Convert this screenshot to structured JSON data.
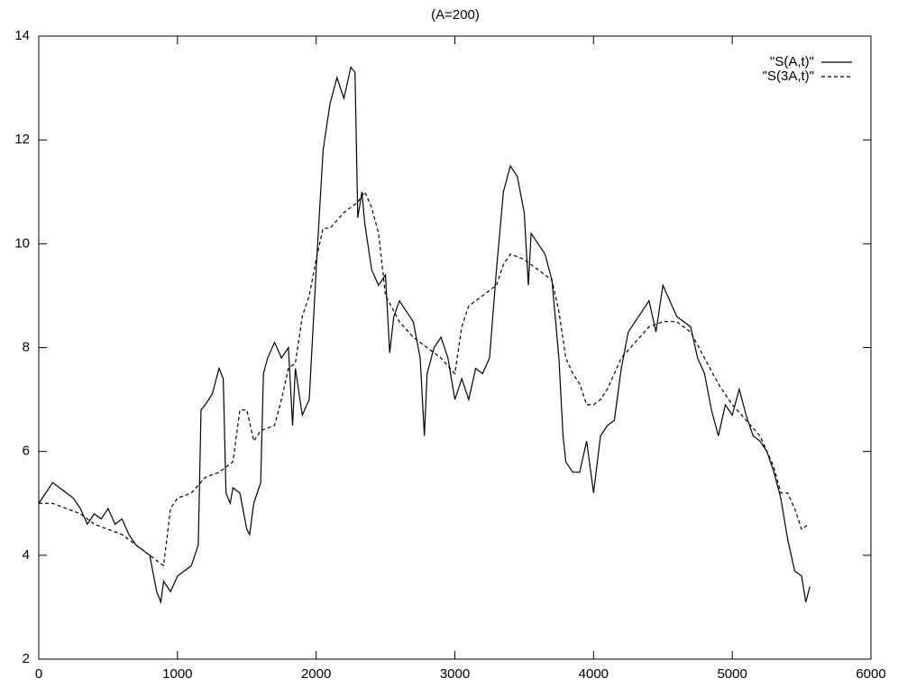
{
  "chart_data": {
    "type": "line",
    "title": "(A=200)",
    "xlim": [
      0,
      6000
    ],
    "xticks": [
      0,
      1000,
      2000,
      3000,
      4000,
      5000,
      6000
    ],
    "ylim": [
      2,
      14
    ],
    "yticks": [
      2,
      4,
      6,
      8,
      10,
      12,
      14
    ],
    "legend": "top-right",
    "series": [
      {
        "name": "\"S(A,t)\"",
        "color": "#000000",
        "style": "solid",
        "x": [
          0,
          50,
          100,
          150,
          200,
          250,
          300,
          350,
          400,
          450,
          500,
          550,
          600,
          650,
          700,
          750,
          800,
          850,
          880,
          900,
          950,
          1000,
          1050,
          1100,
          1150,
          1170,
          1200,
          1250,
          1300,
          1330,
          1350,
          1380,
          1400,
          1450,
          1500,
          1520,
          1550,
          1600,
          1620,
          1650,
          1700,
          1750,
          1800,
          1830,
          1850,
          1900,
          1950,
          2000,
          2050,
          2100,
          2150,
          2200,
          2250,
          2280,
          2300,
          2330,
          2350,
          2400,
          2450,
          2500,
          2530,
          2560,
          2600,
          2650,
          2700,
          2750,
          2780,
          2800,
          2850,
          2900,
          2950,
          3000,
          3050,
          3100,
          3150,
          3200,
          3250,
          3300,
          3350,
          3400,
          3450,
          3500,
          3530,
          3550,
          3600,
          3650,
          3700,
          3750,
          3780,
          3800,
          3850,
          3900,
          3950,
          4000,
          4050,
          4100,
          4150,
          4200,
          4250,
          4300,
          4350,
          4400,
          4450,
          4500,
          4550,
          4600,
          4650,
          4700,
          4750,
          4800,
          4850,
          4900,
          4950,
          5000,
          5050,
          5100,
          5150,
          5200,
          5250,
          5300,
          5350,
          5400,
          5450,
          5500,
          5530,
          5560
        ],
        "values": [
          5.0,
          5.2,
          5.4,
          5.3,
          5.2,
          5.1,
          4.9,
          4.6,
          4.8,
          4.7,
          4.9,
          4.6,
          4.7,
          4.4,
          4.2,
          4.1,
          4.0,
          3.3,
          3.1,
          3.5,
          3.3,
          3.6,
          3.7,
          3.8,
          4.2,
          6.8,
          6.9,
          7.1,
          7.6,
          7.4,
          5.2,
          5.0,
          5.3,
          5.2,
          4.5,
          4.4,
          5.0,
          5.4,
          7.5,
          7.8,
          8.1,
          7.8,
          8.0,
          6.5,
          7.6,
          6.7,
          7.0,
          9.5,
          11.8,
          12.7,
          13.2,
          12.8,
          13.4,
          13.3,
          10.5,
          11.0,
          10.4,
          9.5,
          9.2,
          9.4,
          7.9,
          8.6,
          8.9,
          8.7,
          8.5,
          7.8,
          6.3,
          7.5,
          8.0,
          8.2,
          7.8,
          7.0,
          7.4,
          7.0,
          7.6,
          7.5,
          7.8,
          9.5,
          11.0,
          11.5,
          11.3,
          10.6,
          9.2,
          10.2,
          10.0,
          9.8,
          9.3,
          7.8,
          6.3,
          5.8,
          5.6,
          5.6,
          6.2,
          5.2,
          6.3,
          6.5,
          6.6,
          7.6,
          8.3,
          8.5,
          8.7,
          8.9,
          8.3,
          9.2,
          8.9,
          8.6,
          8.5,
          8.4,
          7.8,
          7.5,
          6.8,
          6.3,
          6.9,
          6.7,
          7.2,
          6.7,
          6.3,
          6.2,
          6.0,
          5.6,
          5.1,
          4.3,
          3.7,
          3.6,
          3.1,
          3.4
        ]
      },
      {
        "name": "\"S(3A,t)\"",
        "color": "#000000",
        "style": "dashed",
        "x": [
          0,
          100,
          200,
          300,
          400,
          500,
          600,
          700,
          800,
          900,
          950,
          1000,
          1100,
          1200,
          1300,
          1400,
          1450,
          1500,
          1550,
          1600,
          1700,
          1750,
          1800,
          1850,
          1900,
          1950,
          2000,
          2050,
          2100,
          2200,
          2300,
          2350,
          2400,
          2450,
          2500,
          2600,
          2700,
          2800,
          2900,
          3000,
          3050,
          3100,
          3200,
          3300,
          3350,
          3400,
          3500,
          3600,
          3700,
          3750,
          3800,
          3850,
          3900,
          3950,
          4000,
          4050,
          4100,
          4200,
          4300,
          4400,
          4500,
          4600,
          4700,
          4800,
          4900,
          5000,
          5100,
          5200,
          5300,
          5350,
          5400,
          5450,
          5500,
          5550
        ],
        "values": [
          5.0,
          5.0,
          4.9,
          4.8,
          4.6,
          4.5,
          4.4,
          4.2,
          4.0,
          3.8,
          4.9,
          5.1,
          5.2,
          5.5,
          5.6,
          5.8,
          6.8,
          6.8,
          6.2,
          6.4,
          6.5,
          7.0,
          7.6,
          7.7,
          8.6,
          9.0,
          9.7,
          10.3,
          10.3,
          10.6,
          10.8,
          11.0,
          10.7,
          10.2,
          9.0,
          8.5,
          8.2,
          8.0,
          7.8,
          7.5,
          8.4,
          8.8,
          9.0,
          9.2,
          9.6,
          9.8,
          9.7,
          9.5,
          9.3,
          8.7,
          7.8,
          7.5,
          7.3,
          6.9,
          6.9,
          7.0,
          7.2,
          7.8,
          8.1,
          8.4,
          8.5,
          8.5,
          8.3,
          7.8,
          7.3,
          6.9,
          6.6,
          6.3,
          5.7,
          5.2,
          5.2,
          4.9,
          4.5,
          4.6
        ]
      }
    ]
  }
}
